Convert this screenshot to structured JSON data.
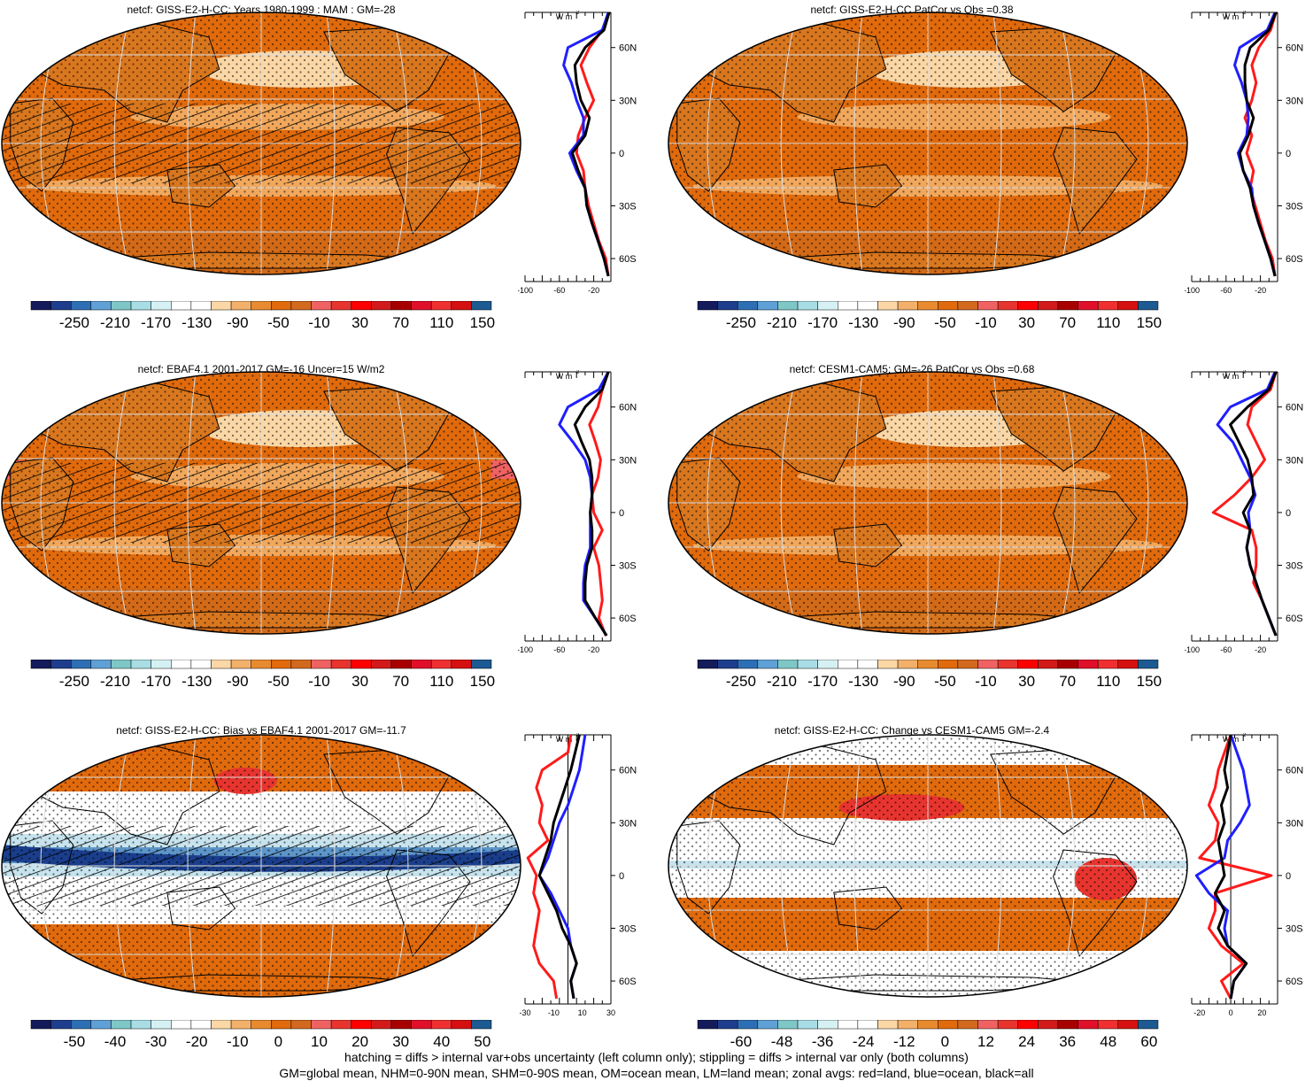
{
  "panels": [
    {
      "id": "p1",
      "title": "netcf: GISS-E2-H-CC: Years 1980-1999 : MAM : GM=-28",
      "map_kind": "mean",
      "hatched": true,
      "profile_xticks": [
        "-100",
        "-60",
        "-20"
      ],
      "profile_xrange": [
        -100,
        0
      ],
      "colorbar_labels": [
        "-250",
        "-210",
        "-170",
        "-130",
        "-90",
        "-50",
        "-10",
        "30",
        "70",
        "110",
        "150"
      ],
      "colorbar_kind": "mean"
    },
    {
      "id": "p2",
      "title": "netcf: GISS-E2-H-CC PatCor vs Obs =0.38",
      "map_kind": "mean",
      "hatched": false,
      "profile_xticks": [
        "-100",
        "-60",
        "-20"
      ],
      "profile_xrange": [
        -100,
        0
      ],
      "colorbar_labels": [
        "-250",
        "-210",
        "-170",
        "-130",
        "-90",
        "-50",
        "-10",
        "30",
        "70",
        "110",
        "150"
      ],
      "colorbar_kind": "mean"
    },
    {
      "id": "p3",
      "title": "netcf: EBAF4.1 2001-2017 GM=-16 Uncer=15 W/m2",
      "map_kind": "mean",
      "hatched": true,
      "profile_xticks": [
        "-100",
        "-60",
        "-20"
      ],
      "profile_xrange": [
        -100,
        0
      ],
      "colorbar_labels": [
        "-250",
        "-210",
        "-170",
        "-130",
        "-90",
        "-50",
        "-10",
        "30",
        "70",
        "110",
        "150"
      ],
      "colorbar_kind": "mean"
    },
    {
      "id": "p4",
      "title": "netcf: CESM1-CAM5: GM=-26 PatCor vs Obs =0.68",
      "map_kind": "mean",
      "hatched": false,
      "profile_xticks": [
        "-100",
        "-60",
        "-20"
      ],
      "profile_xrange": [
        -100,
        0
      ],
      "colorbar_labels": [
        "-250",
        "-210",
        "-170",
        "-130",
        "-90",
        "-50",
        "-10",
        "30",
        "70",
        "110",
        "150"
      ],
      "colorbar_kind": "mean"
    },
    {
      "id": "p5",
      "title": "netcf: GISS-E2-H-CC: Bias vs EBAF4.1 2001-2017 GM=-11.7",
      "map_kind": "bias",
      "hatched": true,
      "profile_xticks": [
        "-30",
        "-10",
        "10",
        "30"
      ],
      "profile_xrange": [
        -30,
        30
      ],
      "colorbar_labels": [
        "-50",
        "-40",
        "-30",
        "-20",
        "-10",
        "0",
        "10",
        "20",
        "30",
        "40",
        "50"
      ],
      "colorbar_kind": "diff"
    },
    {
      "id": "p6",
      "title": "netcf: GISS-E2-H-CC: Change vs CESM1-CAM5 GM=-2.4",
      "map_kind": "change",
      "hatched": false,
      "profile_xticks": [
        "-20",
        "0",
        "20"
      ],
      "profile_xrange": [
        -25,
        30
      ],
      "colorbar_labels": [
        "-60",
        "-48",
        "-36",
        "-24",
        "-12",
        "0",
        "12",
        "24",
        "36",
        "48",
        "60"
      ],
      "colorbar_kind": "diff"
    }
  ],
  "profile_unit": "W m",
  "profile_unit_exp": "-2",
  "lat_labels": [
    "60N",
    "30N",
    "0",
    "30S",
    "60S"
  ],
  "colors": {
    "ocean_base": "#e06a0c",
    "land_base": "#d9771f",
    "light_orange": "#f2a85c",
    "pale": "#fbd7a6",
    "red": "#e8342e",
    "blue_dark": "#1a3e8c",
    "blue_mid": "#5d95c9",
    "blue_light": "#c6e3ee",
    "line_red": "#ff1a1a",
    "line_blue": "#1f1fff",
    "line_black": "#000000"
  },
  "colorbar_palette": [
    "#141b5a",
    "#1e3d8c",
    "#2d6fb4",
    "#5fa0d6",
    "#7fc7c7",
    "#a9dde6",
    "#d6f1f3",
    "#ffffff",
    "#ffffff",
    "#fbd7a6",
    "#f3b06a",
    "#e88a2f",
    "#e06a0c",
    "#d2691e",
    "#f06262",
    "#e8342e",
    "#ff0000",
    "#d31a1a",
    "#a80000",
    "#e0102a",
    "#f03030",
    "#d51010",
    "#1c5a91"
  ],
  "footer_line1": "hatching = diffs > internal var+obs uncertainty (left column only); stippling = diffs > internal var only (both columns)",
  "footer_line2": "GM=global mean, NHM=0-90N mean, SHM=0-90S mean, OM=ocean mean, LM=land mean; zonal avgs: red=land, blue=ocean, black=all",
  "profiles": {
    "lat": [
      80,
      70,
      60,
      50,
      40,
      30,
      20,
      10,
      0,
      -10,
      -20,
      -30,
      -40,
      -50,
      -60,
      -70
    ],
    "p1": {
      "all": [
        -2,
        -8,
        -30,
        -42,
        -40,
        -35,
        -25,
        -30,
        -45,
        -38,
        -30,
        -28,
        -22,
        -15,
        -8,
        -3
      ],
      "land": [
        -2,
        -10,
        -25,
        -35,
        -28,
        -20,
        -30,
        -38,
        -40,
        -32,
        -30,
        -26,
        -20,
        -14,
        -6,
        -3
      ],
      "ocean": [
        -3,
        -10,
        -50,
        -55,
        -46,
        -40,
        -32,
        -32,
        -48,
        -40,
        -30,
        -28,
        -22,
        -15,
        -8,
        -3
      ]
    },
    "p2": {
      "all": [
        -2,
        -10,
        -32,
        -38,
        -38,
        -36,
        -28,
        -34,
        -44,
        -40,
        -32,
        -28,
        -22,
        -15,
        -8,
        -3
      ],
      "land": [
        -2,
        -8,
        -22,
        -30,
        -25,
        -30,
        -38,
        -30,
        -36,
        -28,
        -32,
        -26,
        -20,
        -14,
        -6,
        -3
      ],
      "ocean": [
        -3,
        -12,
        -44,
        -50,
        -42,
        -36,
        -34,
        -36,
        -46,
        -40,
        -30,
        -28,
        -22,
        -15,
        -8,
        -3
      ]
    },
    "p3": {
      "all": [
        -3,
        -10,
        -30,
        -42,
        -34,
        -25,
        -22,
        -22,
        -24,
        -22,
        -22,
        -28,
        -30,
        -30,
        -18,
        -5
      ],
      "land": [
        -3,
        -10,
        -15,
        -25,
        -18,
        -12,
        -15,
        -22,
        -20,
        -10,
        -20,
        -14,
        -12,
        -10,
        -14,
        -6
      ],
      "ocean": [
        -3,
        -14,
        -50,
        -60,
        -44,
        -30,
        -24,
        -22,
        -24,
        -24,
        -24,
        -30,
        -32,
        -32,
        -18,
        -5
      ]
    },
    "p4": {
      "all": [
        -2,
        -10,
        -35,
        -55,
        -45,
        -35,
        -30,
        -28,
        -40,
        -32,
        -36,
        -32,
        -25,
        -18,
        -10,
        -2
      ],
      "land": [
        -2,
        -8,
        -30,
        -35,
        -25,
        -15,
        -30,
        -50,
        -75,
        -30,
        -25,
        -25,
        -28,
        -18,
        -10,
        -2
      ],
      "ocean": [
        -3,
        -12,
        -55,
        -70,
        -52,
        -42,
        -32,
        -26,
        -34,
        -32,
        -36,
        -32,
        -25,
        -18,
        -10,
        -2
      ]
    },
    "p5": {
      "all": [
        8,
        5,
        2,
        -2,
        -6,
        -10,
        -12,
        -16,
        -20,
        -14,
        -8,
        -4,
        2,
        6,
        2,
        4
      ],
      "land": [
        2,
        0,
        -18,
        -22,
        -18,
        -20,
        -14,
        -28,
        -22,
        -24,
        -20,
        -22,
        -24,
        -20,
        -10,
        -8
      ],
      "ocean": [
        12,
        10,
        8,
        4,
        0,
        -6,
        -10,
        -14,
        -20,
        -12,
        -6,
        0,
        2,
        6,
        2,
        4
      ],
      "xrange": [
        -30,
        30
      ]
    },
    "p6": {
      "all": [
        0,
        -2,
        -4,
        -2,
        -6,
        -4,
        -8,
        -6,
        -4,
        -10,
        -4,
        -8,
        -2,
        10,
        2,
        0
      ],
      "land": [
        0,
        -4,
        -8,
        -10,
        -14,
        -8,
        -10,
        -20,
        26,
        -10,
        -10,
        -14,
        -6,
        8,
        -6,
        0
      ],
      "ocean": [
        0,
        4,
        8,
        10,
        12,
        6,
        -2,
        -4,
        -22,
        -14,
        -2,
        -4,
        -2,
        10,
        2,
        0
      ],
      "xrange": [
        -25,
        30
      ]
    }
  }
}
